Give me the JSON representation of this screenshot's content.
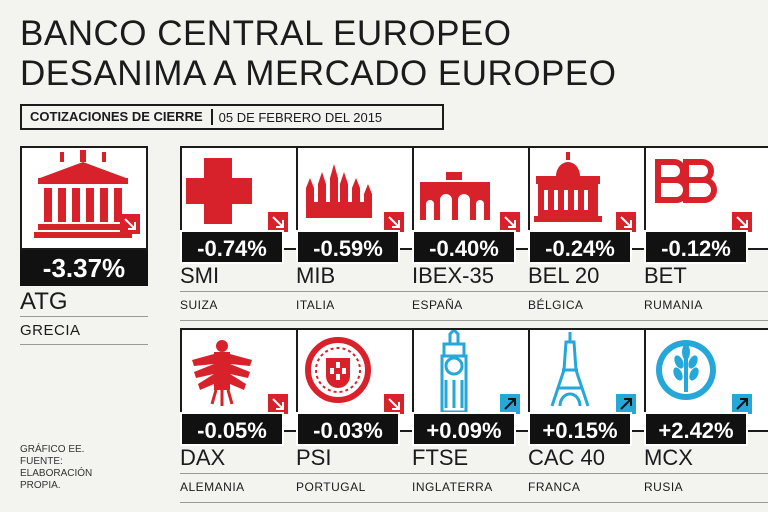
{
  "title": {
    "line1": "BANCO CENTRAL EUROPEO",
    "line2": "DESANIMA A MERCADO EUROPEO"
  },
  "subhead": {
    "label": "COTIZACIONES DE CIERRE",
    "date": "05 DE FEBRERO DEL 2015"
  },
  "colors": {
    "red": "#d8222b",
    "blue": "#26a7d9",
    "dark": "#111111"
  },
  "chart_data": {
    "type": "table",
    "title": "Cotizaciones de cierre",
    "unit": "%",
    "categories": [
      "ATG",
      "SMI",
      "MIB",
      "IBEX-35",
      "BEL 20",
      "BET",
      "DAX",
      "PSI",
      "FTSE",
      "CAC 40",
      "MCX"
    ],
    "values": [
      -3.37,
      -0.74,
      -0.59,
      -0.4,
      -0.24,
      -0.12,
      -0.05,
      -0.03,
      0.09,
      0.15,
      2.42
    ]
  },
  "markets": [
    {
      "value": "-3.37%",
      "index": "ATG",
      "country": "GRECIA",
      "icon": "parthenon-icon",
      "trend": "down"
    },
    {
      "value": "-0.74%",
      "index": "SMI",
      "country": "SUIZA",
      "icon": "swiss-cross-icon",
      "trend": "down"
    },
    {
      "value": "-0.59%",
      "index": "MIB",
      "country": "ITALIA",
      "icon": "milan-cathedral-icon",
      "trend": "down"
    },
    {
      "value": "-0.40%",
      "index": "IBEX-35",
      "country": "ESPAÑA",
      "icon": "puerta-alcala-icon",
      "trend": "down"
    },
    {
      "value": "-0.24%",
      "index": "BEL 20",
      "country": "BÉLGICA",
      "icon": "palace-dome-icon",
      "trend": "down"
    },
    {
      "value": "-0.12%",
      "index": "BET",
      "country": "RUMANIA",
      "icon": "bet-logo-icon",
      "trend": "down"
    },
    {
      "value": "-0.05%",
      "index": "DAX",
      "country": "ALEMANIA",
      "icon": "german-eagle-icon",
      "trend": "down"
    },
    {
      "value": "-0.03%",
      "index": "PSI",
      "country": "PORTUGAL",
      "icon": "portugal-shield-icon",
      "trend": "down"
    },
    {
      "value": "+0.09%",
      "index": "FTSE",
      "country": "INGLATERRA",
      "icon": "big-ben-icon",
      "trend": "up"
    },
    {
      "value": "+0.15%",
      "index": "CAC 40",
      "country": "FRANCA",
      "icon": "eiffel-tower-icon",
      "trend": "up"
    },
    {
      "value": "+2.42%",
      "index": "MCX",
      "country": "RUSIA",
      "icon": "mcx-logo-icon",
      "trend": "up"
    }
  ],
  "credits": {
    "line1": "GRÁFICO EE.",
    "line2": "FUENTE:",
    "line3": "ELABORACIÓN",
    "line4": "PROPIA."
  }
}
